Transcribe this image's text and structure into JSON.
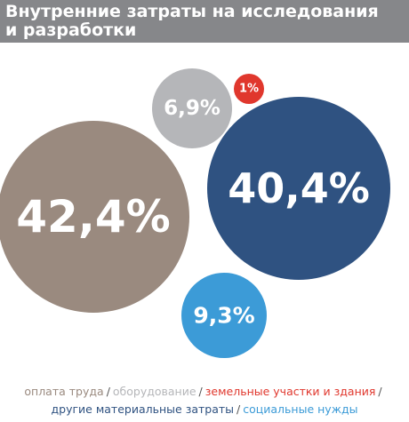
{
  "title_line1": "Внутренние затраты на исследования",
  "title_line2": "и разработки",
  "colors": {
    "header_bg": "#86878a",
    "labor": "#9a8a7f",
    "equipment": "#b5b6b9",
    "land": "#e0372d",
    "materials": "#2f5281",
    "social": "#3c9bd7"
  },
  "chart_data": {
    "type": "bubble",
    "title": "Внутренние затраты на исследования и разработки",
    "series": [
      {
        "name": "оплата труда",
        "value": 42.4,
        "label": "42,4%",
        "color": "#9a8a7f"
      },
      {
        "name": "оборудование",
        "value": 6.9,
        "label": "6,9%",
        "color": "#b5b6b9"
      },
      {
        "name": "земельные участки и здания",
        "value": 1,
        "label": "1%",
        "color": "#e0372d"
      },
      {
        "name": "другие материальные затраты",
        "value": 40.4,
        "label": "40,4%",
        "color": "#2f5281"
      },
      {
        "name": "социальные нужды",
        "value": 9.3,
        "label": "9,3%",
        "color": "#3c9bd7"
      }
    ]
  },
  "legend_separator": "/"
}
